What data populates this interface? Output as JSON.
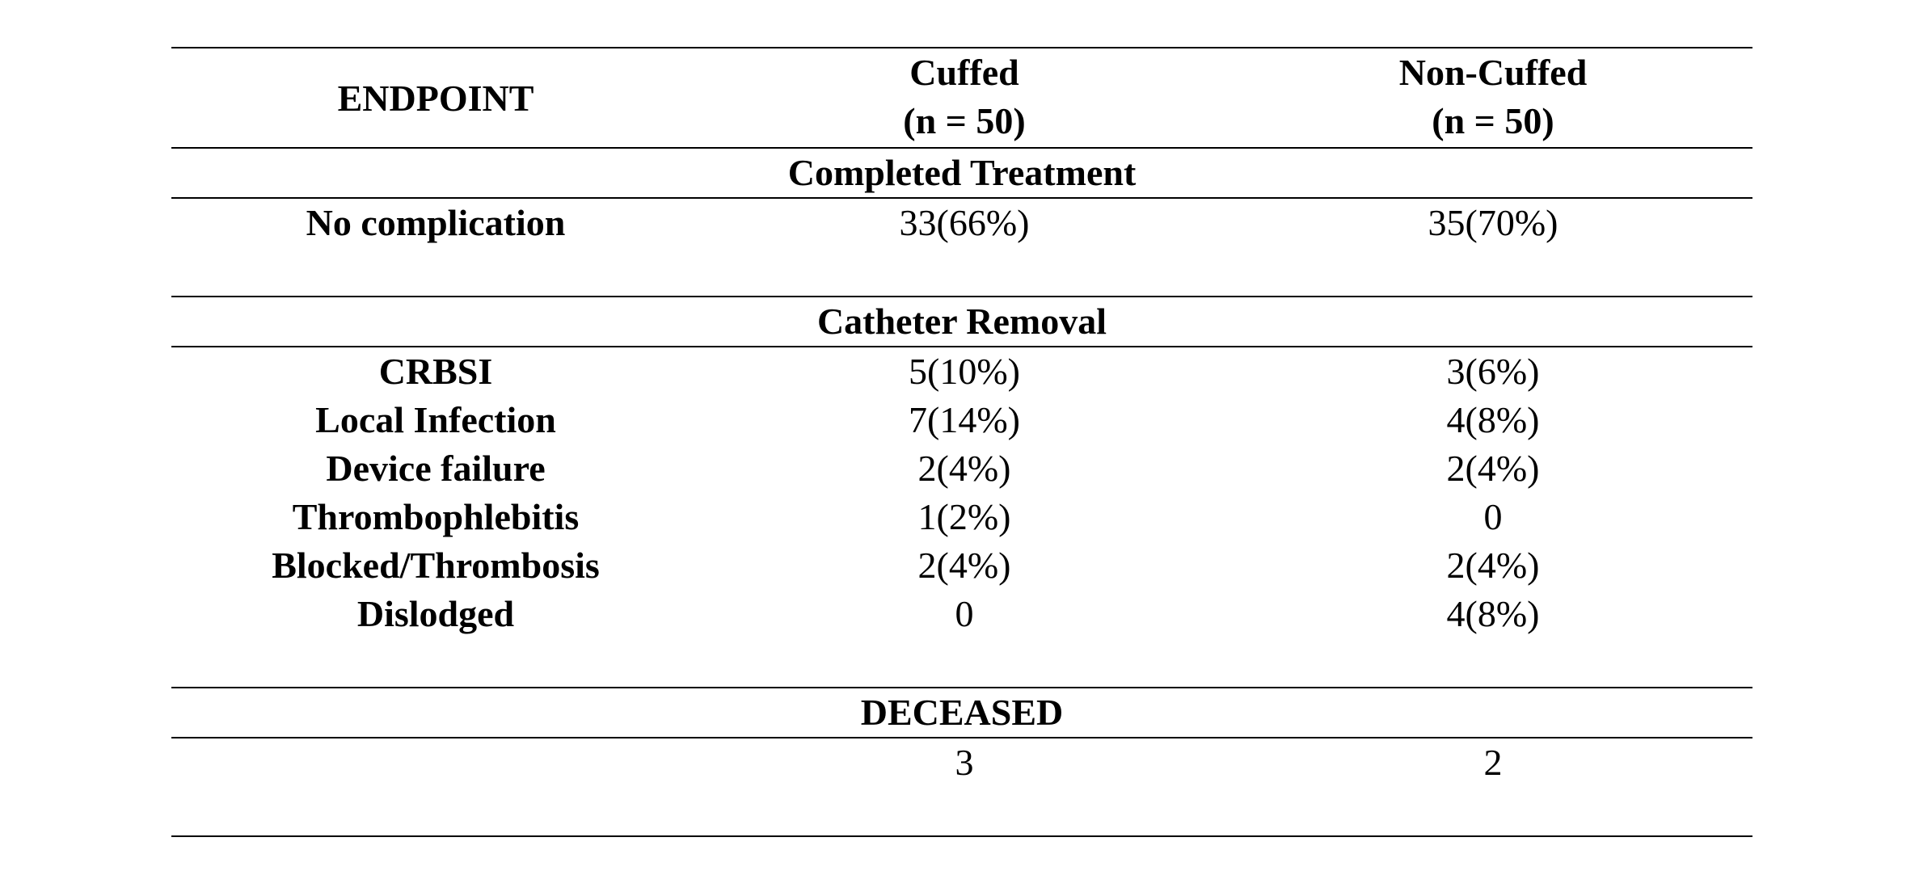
{
  "header": {
    "endpoint": "ENDPOINT",
    "cuffed": "Cuffed",
    "cuffed_n": "(n = 50)",
    "noncuffed": "Non-Cuffed",
    "noncuffed_n": "(n = 50)"
  },
  "sections": {
    "completed": {
      "title": "Completed Treatment",
      "rows": [
        {
          "label": "No complication",
          "cuffed": "33(66%)",
          "noncuffed": "35(70%)"
        }
      ]
    },
    "removal": {
      "title": "Catheter Removal",
      "rows": [
        {
          "label": "CRBSI",
          "cuffed": "5(10%)",
          "noncuffed": "3(6%)"
        },
        {
          "label": "Local Infection",
          "cuffed": "7(14%)",
          "noncuffed": "4(8%)"
        },
        {
          "label": "Device failure",
          "cuffed": "2(4%)",
          "noncuffed": "2(4%)"
        },
        {
          "label": "Thrombophlebitis",
          "cuffed": "1(2%)",
          "noncuffed": "0"
        },
        {
          "label": "Blocked/Thrombosis",
          "cuffed": "2(4%)",
          "noncuffed": "2(4%)"
        },
        {
          "label": "Dislodged",
          "cuffed": "0",
          "noncuffed": "4(8%)"
        }
      ]
    },
    "deceased": {
      "title": "DECEASED",
      "rows": [
        {
          "label": "",
          "cuffed": "3",
          "noncuffed": "2"
        }
      ]
    }
  }
}
